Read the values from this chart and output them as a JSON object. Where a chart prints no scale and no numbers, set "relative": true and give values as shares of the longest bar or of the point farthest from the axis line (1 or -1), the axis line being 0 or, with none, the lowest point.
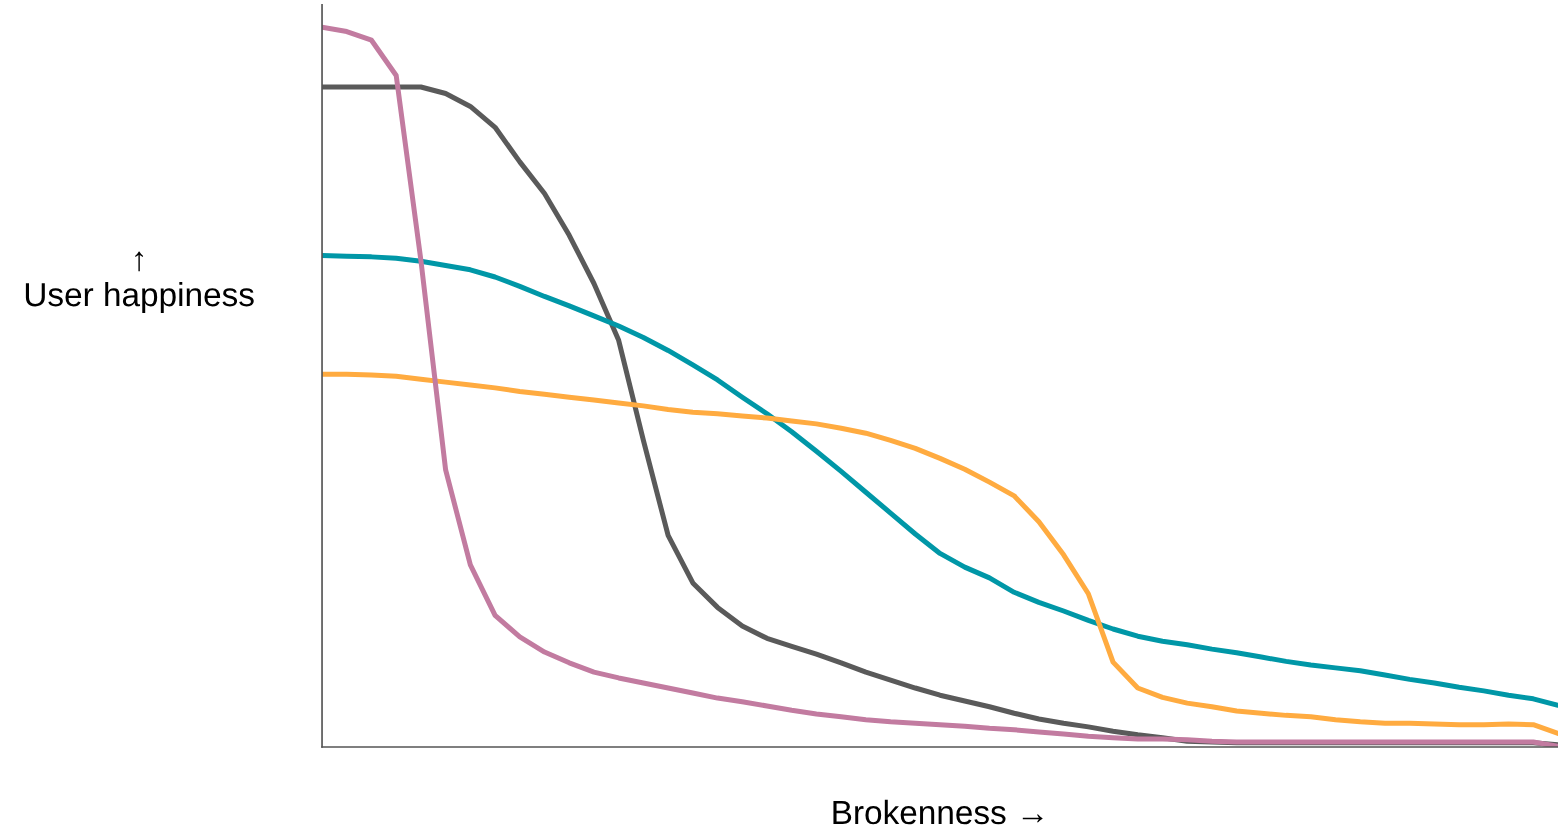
{
  "chart_data": {
    "type": "line",
    "relative": true,
    "tick_labels": false,
    "xlabel": "Brokenness →",
    "ylabel": "↑\nUser happiness",
    "categories": [
      null,
      null,
      null,
      null,
      null,
      null,
      null,
      null,
      null,
      null,
      null,
      null,
      null,
      null,
      null,
      null,
      null,
      null,
      null,
      null,
      null,
      null,
      null,
      null,
      null,
      null,
      null,
      null,
      null,
      null,
      null,
      null,
      null,
      null,
      null,
      null,
      null,
      null,
      null,
      null,
      null,
      null,
      null,
      null,
      null,
      null,
      null,
      null,
      null,
      null,
      null
    ],
    "series": [
      {
        "color": "#5a5a5a",
        "values": [
          0.917,
          0.917,
          0.917,
          0.917,
          0.917,
          0.908,
          0.89,
          0.861,
          0.813,
          0.769,
          0.711,
          0.644,
          0.565,
          0.426,
          0.294,
          0.228,
          0.194,
          0.168,
          0.151,
          0.14,
          0.129,
          0.117,
          0.104,
          0.093,
          0.082,
          0.072,
          0.064,
          0.056,
          0.047,
          0.039,
          0.033,
          0.028,
          0.022,
          0.017,
          0.013,
          0.008,
          0.007,
          0.006,
          0.006,
          0.006,
          0.006,
          0.006,
          0.006,
          0.006,
          0.006,
          0.006,
          0.006,
          0.006,
          0.006,
          0.006,
          0.003
        ]
      },
      {
        "color": "#0097a7",
        "values": [
          0.683,
          0.682,
          0.681,
          0.679,
          0.675,
          0.669,
          0.663,
          0.653,
          0.64,
          0.626,
          0.613,
          0.599,
          0.585,
          0.569,
          0.551,
          0.531,
          0.51,
          0.486,
          0.463,
          0.438,
          0.411,
          0.383,
          0.354,
          0.325,
          0.296,
          0.269,
          0.25,
          0.235,
          0.215,
          0.201,
          0.189,
          0.176,
          0.164,
          0.154,
          0.147,
          0.142,
          0.136,
          0.131,
          0.125,
          0.119,
          0.114,
          0.11,
          0.106,
          0.1,
          0.094,
          0.089,
          0.083,
          0.078,
          0.072,
          0.067,
          0.058
        ]
      },
      {
        "color": "#ffab40",
        "values": [
          0.518,
          0.518,
          0.517,
          0.515,
          0.511,
          0.507,
          0.503,
          0.499,
          0.494,
          0.49,
          0.486,
          0.482,
          0.478,
          0.474,
          0.469,
          0.465,
          0.463,
          0.46,
          0.457,
          0.453,
          0.449,
          0.443,
          0.436,
          0.426,
          0.415,
          0.401,
          0.386,
          0.368,
          0.349,
          0.313,
          0.267,
          0.213,
          0.118,
          0.082,
          0.069,
          0.061,
          0.056,
          0.05,
          0.047,
          0.044,
          0.042,
          0.038,
          0.035,
          0.033,
          0.033,
          0.032,
          0.031,
          0.031,
          0.032,
          0.031,
          0.019
        ]
      },
      {
        "color": "#c27ba0",
        "values": [
          1.0,
          0.994,
          0.982,
          0.933,
          0.676,
          0.385,
          0.253,
          0.183,
          0.153,
          0.132,
          0.117,
          0.104,
          0.096,
          0.089,
          0.082,
          0.075,
          0.068,
          0.063,
          0.057,
          0.051,
          0.046,
          0.042,
          0.038,
          0.035,
          0.033,
          0.031,
          0.029,
          0.026,
          0.024,
          0.021,
          0.018,
          0.015,
          0.013,
          0.011,
          0.011,
          0.01,
          0.008,
          0.007,
          0.007,
          0.007,
          0.007,
          0.007,
          0.007,
          0.007,
          0.007,
          0.007,
          0.007,
          0.007,
          0.007,
          0.007,
          0.001
        ]
      }
    ]
  }
}
